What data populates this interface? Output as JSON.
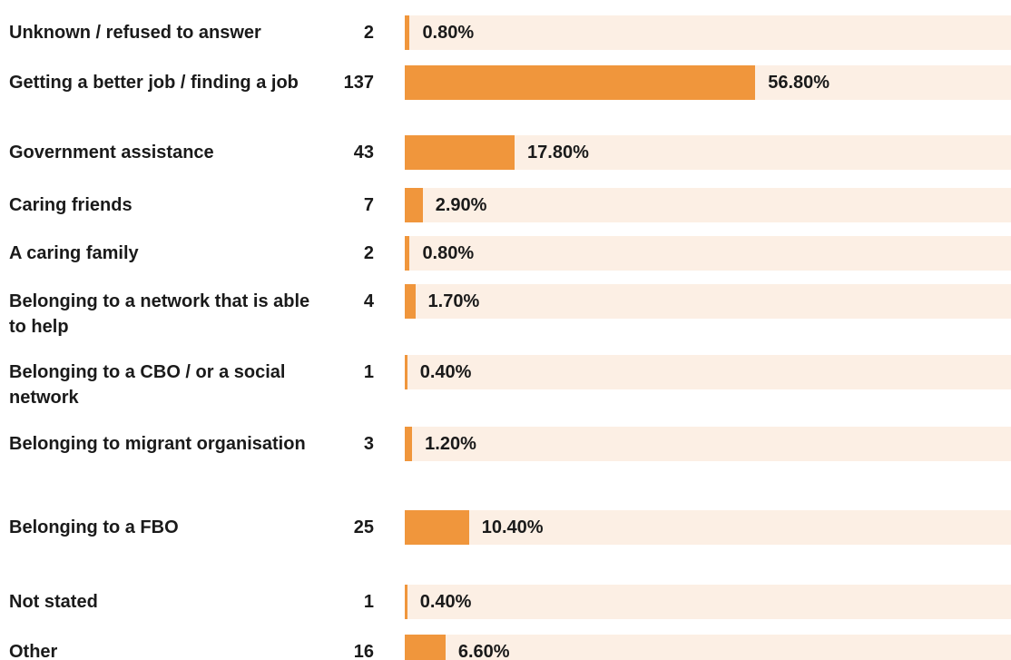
{
  "chart_data": {
    "type": "bar",
    "categories": [
      "Unknown / refused to answer",
      "Getting a better job / finding a job",
      "Government assistance",
      "Caring friends",
      "A caring family",
      "Belonging to a network that is able to help",
      "Belonging to a CBO / or a social network",
      "Belonging to migrant organisation",
      "Belonging to a FBO",
      "Not stated",
      "Other"
    ],
    "counts": [
      2,
      137,
      43,
      7,
      2,
      4,
      1,
      3,
      25,
      1,
      16
    ],
    "values": [
      0.8,
      56.8,
      17.8,
      2.9,
      0.8,
      1.7,
      0.4,
      1.2,
      10.4,
      0.4,
      6.6
    ],
    "value_labels": [
      "0.80%",
      "56.80%",
      "17.80%",
      "2.90%",
      "0.80%",
      "1.70%",
      "0.40%",
      "1.20%",
      "10.40%",
      "0.40%",
      "6.60%"
    ],
    "color": "#f0963c"
  }
}
